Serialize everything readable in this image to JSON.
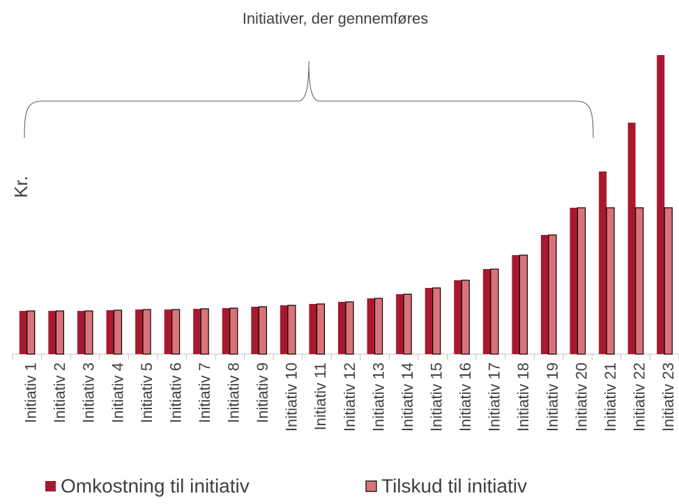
{
  "chart_data": {
    "type": "bar",
    "title": "Initiativer, der gennemføres",
    "y_label": "Kr.",
    "categories": [
      "Initiativ 1",
      "Initiativ 2",
      "Initiativ 3",
      "Initiativ 4",
      "Initiativ 5",
      "Initiativ 6",
      "Initiativ 7",
      "Initiativ 8",
      "Initiativ 9",
      "Initiativ 10",
      "Initiativ 11",
      "Initiativ 12",
      "Initiativ 13",
      "Initiativ 14",
      "Initiativ 15",
      "Initiativ 16",
      "Initiativ 17",
      "Initiativ 18",
      "Initiativ 19",
      "Initiativ 20",
      "Initiativ 21",
      "Initiativ 22",
      "Initiativ 23"
    ],
    "series": [
      {
        "name": "Omkostning til initiativ",
        "color": "#a6192e",
        "values": [
          62,
          62,
          62,
          63,
          64,
          64,
          65,
          66,
          68,
          70,
          72,
          75,
          80,
          86,
          95,
          106,
          122,
          142,
          171,
          210,
          262,
          332,
          429
        ]
      },
      {
        "name": "Tilskud til initiativ",
        "color": "#d9737a",
        "values": [
          62,
          62,
          62,
          63,
          64,
          64,
          65,
          66,
          68,
          70,
          72,
          75,
          80,
          86,
          95,
          106,
          122,
          142,
          171,
          210,
          210,
          210,
          210
        ]
      }
    ],
    "ylim": [
      0,
      440
    ]
  }
}
